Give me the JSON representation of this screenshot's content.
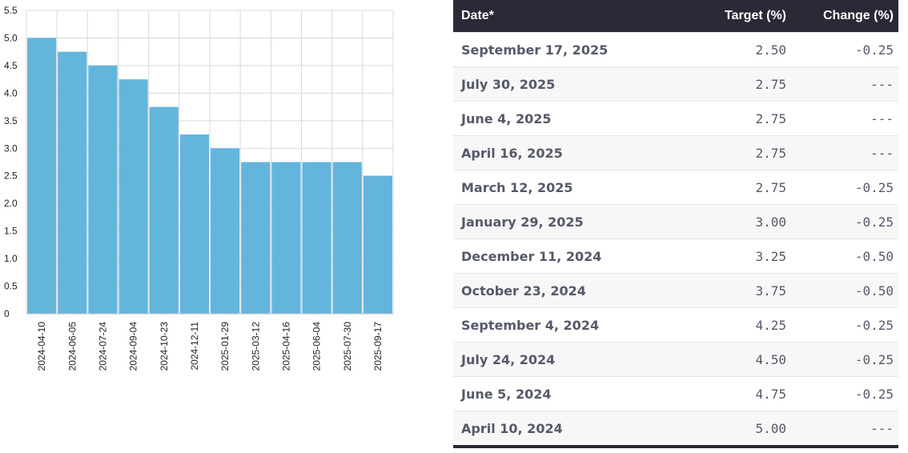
{
  "chart_data": {
    "type": "bar",
    "categories": [
      "2024-04-10",
      "2024-06-05",
      "2024-07-24",
      "2024-09-04",
      "2024-10-23",
      "2024-12-11",
      "2025-01-29",
      "2025-03-12",
      "2025-04-16",
      "2025-06-04",
      "2025-07-30",
      "2025-09-17"
    ],
    "values": [
      5.0,
      4.75,
      4.5,
      4.25,
      3.75,
      3.25,
      3.0,
      2.75,
      2.75,
      2.75,
      2.75,
      2.5
    ],
    "yticks": [
      "0",
      "0.5",
      "1.0",
      "1.5",
      "2.0",
      "2.5",
      "3.0",
      "3.5",
      "4.0",
      "4.5",
      "5.0",
      "5.5"
    ],
    "ylim": [
      0,
      5.5
    ],
    "grid": true,
    "bar_color": "#64b5dc",
    "title": "",
    "xlabel": "",
    "ylabel": ""
  },
  "table": {
    "headers": {
      "date": "Date*",
      "target": "Target (%)",
      "change": "Change (%)"
    },
    "rows": [
      {
        "date": "September 17, 2025",
        "target": "2.50",
        "change": "-0.25"
      },
      {
        "date": "July 30, 2025",
        "target": "2.75",
        "change": "---"
      },
      {
        "date": "June 4, 2025",
        "target": "2.75",
        "change": "---"
      },
      {
        "date": "April 16, 2025",
        "target": "2.75",
        "change": "---"
      },
      {
        "date": "March 12, 2025",
        "target": "2.75",
        "change": "-0.25"
      },
      {
        "date": "January 29, 2025",
        "target": "3.00",
        "change": "-0.25"
      },
      {
        "date": "December 11, 2024",
        "target": "3.25",
        "change": "-0.50"
      },
      {
        "date": "October 23, 2024",
        "target": "3.75",
        "change": "-0.50"
      },
      {
        "date": "September 4, 2024",
        "target": "4.25",
        "change": "-0.25"
      },
      {
        "date": "July 24, 2024",
        "target": "4.50",
        "change": "-0.25"
      },
      {
        "date": "June 5, 2024",
        "target": "4.75",
        "change": "-0.25"
      },
      {
        "date": "April 10, 2024",
        "target": "5.00",
        "change": "---"
      }
    ]
  },
  "colors": {
    "header_bg": "#2a2a36",
    "header_text": "#ffffff",
    "body_text": "#55596a"
  }
}
